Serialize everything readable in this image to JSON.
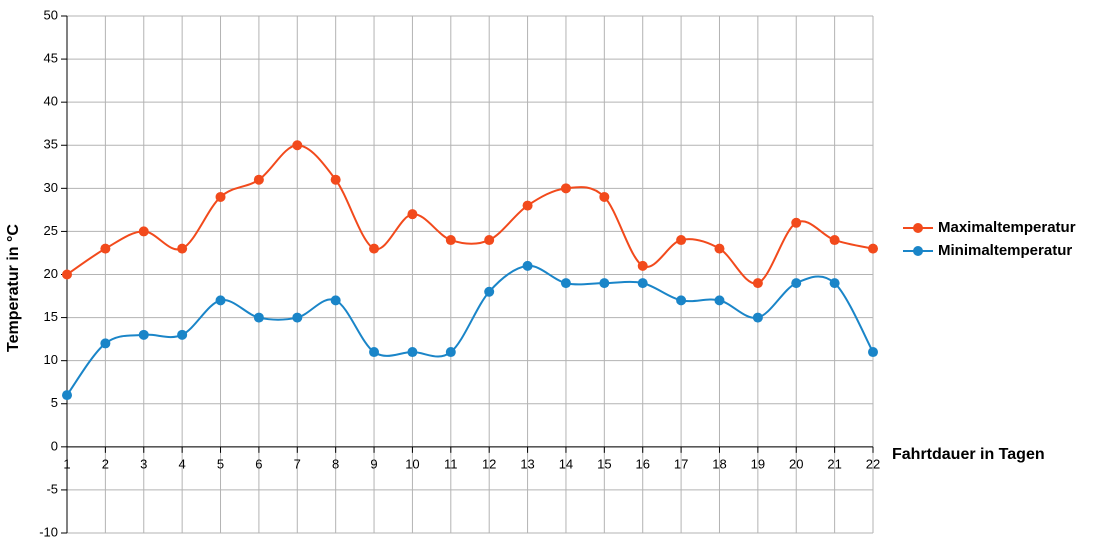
{
  "chart_data": {
    "type": "line",
    "xlabel": "Fahrtdauer in Tagen",
    "ylabel": "Temperatur in °C",
    "x": [
      1,
      2,
      3,
      4,
      5,
      6,
      7,
      8,
      9,
      10,
      11,
      12,
      13,
      14,
      15,
      16,
      17,
      18,
      19,
      20,
      21,
      22
    ],
    "series": [
      {
        "name": "Maximaltemperatur",
        "color": "#f24a1c",
        "values": [
          20,
          23,
          25,
          23,
          29,
          31,
          35,
          31,
          23,
          27,
          24,
          24,
          28,
          30,
          29,
          21,
          24,
          23,
          19,
          26,
          24,
          23
        ]
      },
      {
        "name": "Minimaltemperatur",
        "color": "#1a85c8",
        "values": [
          6,
          12,
          13,
          13,
          17,
          15,
          15,
          17,
          11,
          11,
          11,
          18,
          21,
          19,
          19,
          19,
          17,
          17,
          15,
          19,
          19,
          11
        ]
      }
    ],
    "xlim": [
      1,
      22
    ],
    "xticks": [
      1,
      2,
      3,
      4,
      5,
      6,
      7,
      8,
      9,
      10,
      11,
      12,
      13,
      14,
      15,
      16,
      17,
      18,
      19,
      20,
      21,
      22
    ],
    "ylim": [
      -10,
      50
    ],
    "yticks": [
      -10,
      -5,
      0,
      5,
      10,
      15,
      20,
      25,
      30,
      35,
      40,
      45,
      50
    ],
    "grid": true,
    "smooth": true,
    "legend": "right"
  }
}
